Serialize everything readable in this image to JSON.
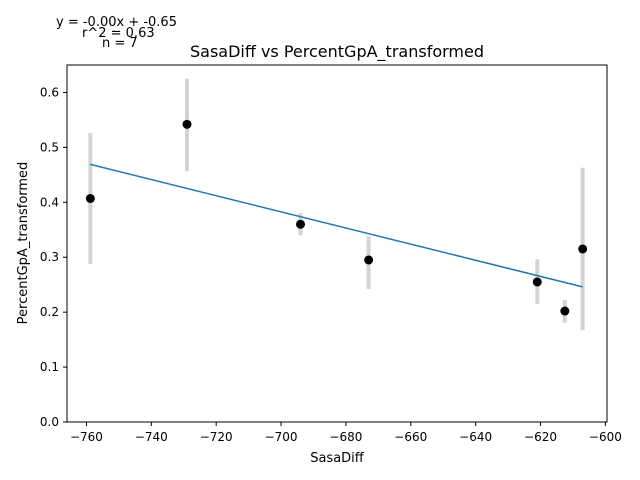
{
  "chart_data": {
    "type": "scatter",
    "title": "SasaDiff vs PercentGpA_transformed",
    "xlabel": "SasaDiff",
    "ylabel": "PercentGpA_transformed",
    "xlim": [
      -766,
      -599.5
    ],
    "ylim": [
      0,
      0.65
    ],
    "xticks": [
      -760,
      -740,
      -720,
      -700,
      -680,
      -660,
      -640,
      -620,
      -600
    ],
    "yticks": [
      0.0,
      0.1,
      0.2,
      0.3,
      0.4,
      0.5,
      0.6
    ],
    "xtick_labels": [
      "−760",
      "−740",
      "−720",
      "−700",
      "−680",
      "−660",
      "−640",
      "−620",
      "−600"
    ],
    "ytick_labels": [
      "0.0",
      "0.1",
      "0.2",
      "0.3",
      "0.4",
      "0.5",
      "0.6"
    ],
    "grid": false,
    "points": [
      {
        "x": -758.8,
        "y": 0.407,
        "err_low": 0.288,
        "err_high": 0.526
      },
      {
        "x": -729.0,
        "y": 0.542,
        "err_low": 0.457,
        "err_high": 0.625
      },
      {
        "x": -694.0,
        "y": 0.36,
        "err_low": 0.34,
        "err_high": 0.38
      },
      {
        "x": -673.0,
        "y": 0.295,
        "err_low": 0.242,
        "err_high": 0.338
      },
      {
        "x": -621.0,
        "y": 0.255,
        "err_low": 0.215,
        "err_high": 0.296
      },
      {
        "x": -612.5,
        "y": 0.202,
        "err_low": 0.181,
        "err_high": 0.222
      },
      {
        "x": -607.0,
        "y": 0.315,
        "err_low": 0.167,
        "err_high": 0.463
      }
    ],
    "fit_line": {
      "x": [
        -758.8,
        -607.0
      ],
      "y": [
        0.469,
        0.246
      ]
    },
    "colors": {
      "points": "#000000",
      "errorbars": "#d3d3d3",
      "fit": "#1f77b4"
    },
    "annotations": [
      "y = -0.00x + -0.65",
      "r^2 = 0.63",
      "n = 7"
    ]
  }
}
